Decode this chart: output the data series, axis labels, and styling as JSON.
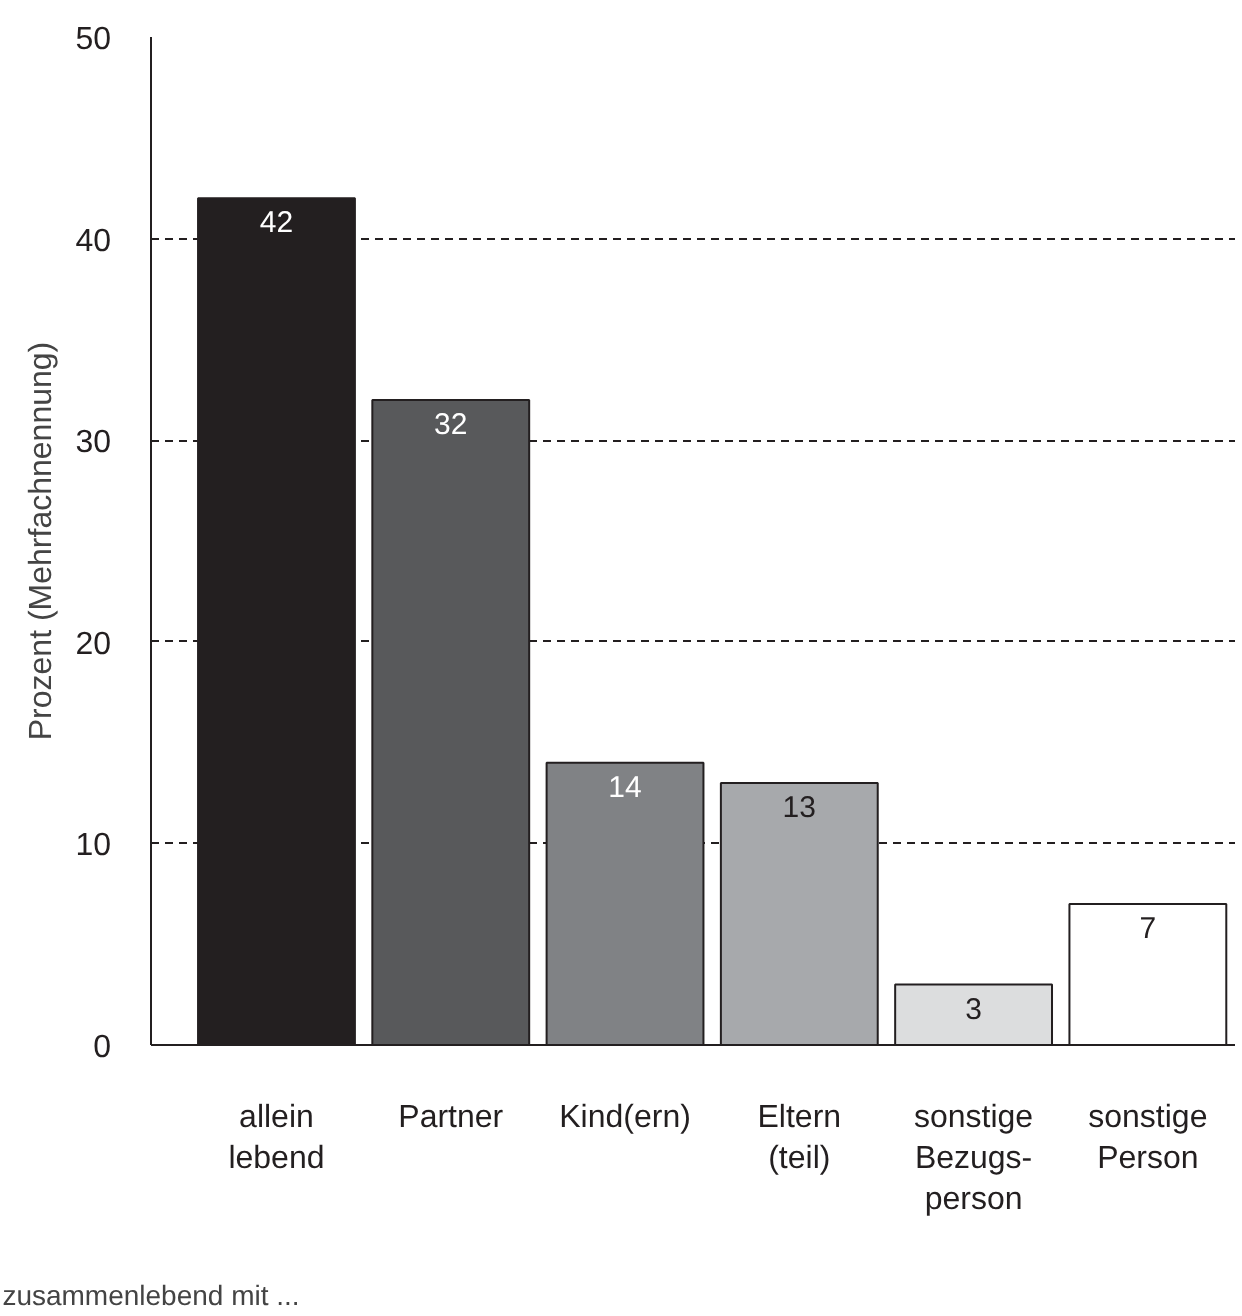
{
  "chart_data": {
    "type": "bar",
    "categories": [
      "allein\nlebend",
      "Partner",
      "Kind(ern)",
      "Eltern\n(teil)",
      "sonstige\nBezugs-\nperson",
      "sonstige\nPerson"
    ],
    "values": [
      42,
      32,
      14,
      13,
      3,
      7
    ],
    "colors": [
      "#231f20",
      "#58595b",
      "#808285",
      "#a7a9ac",
      "#dcddde",
      "#ffffff"
    ],
    "ylabel": "Prozent (Mehrfachnennung)",
    "xlabel": "zusammenlebend mit ...",
    "ylim": [
      0,
      50
    ],
    "yticks": [
      0,
      10,
      20,
      30,
      40,
      50
    ],
    "grid": "y",
    "data_labels": true
  }
}
